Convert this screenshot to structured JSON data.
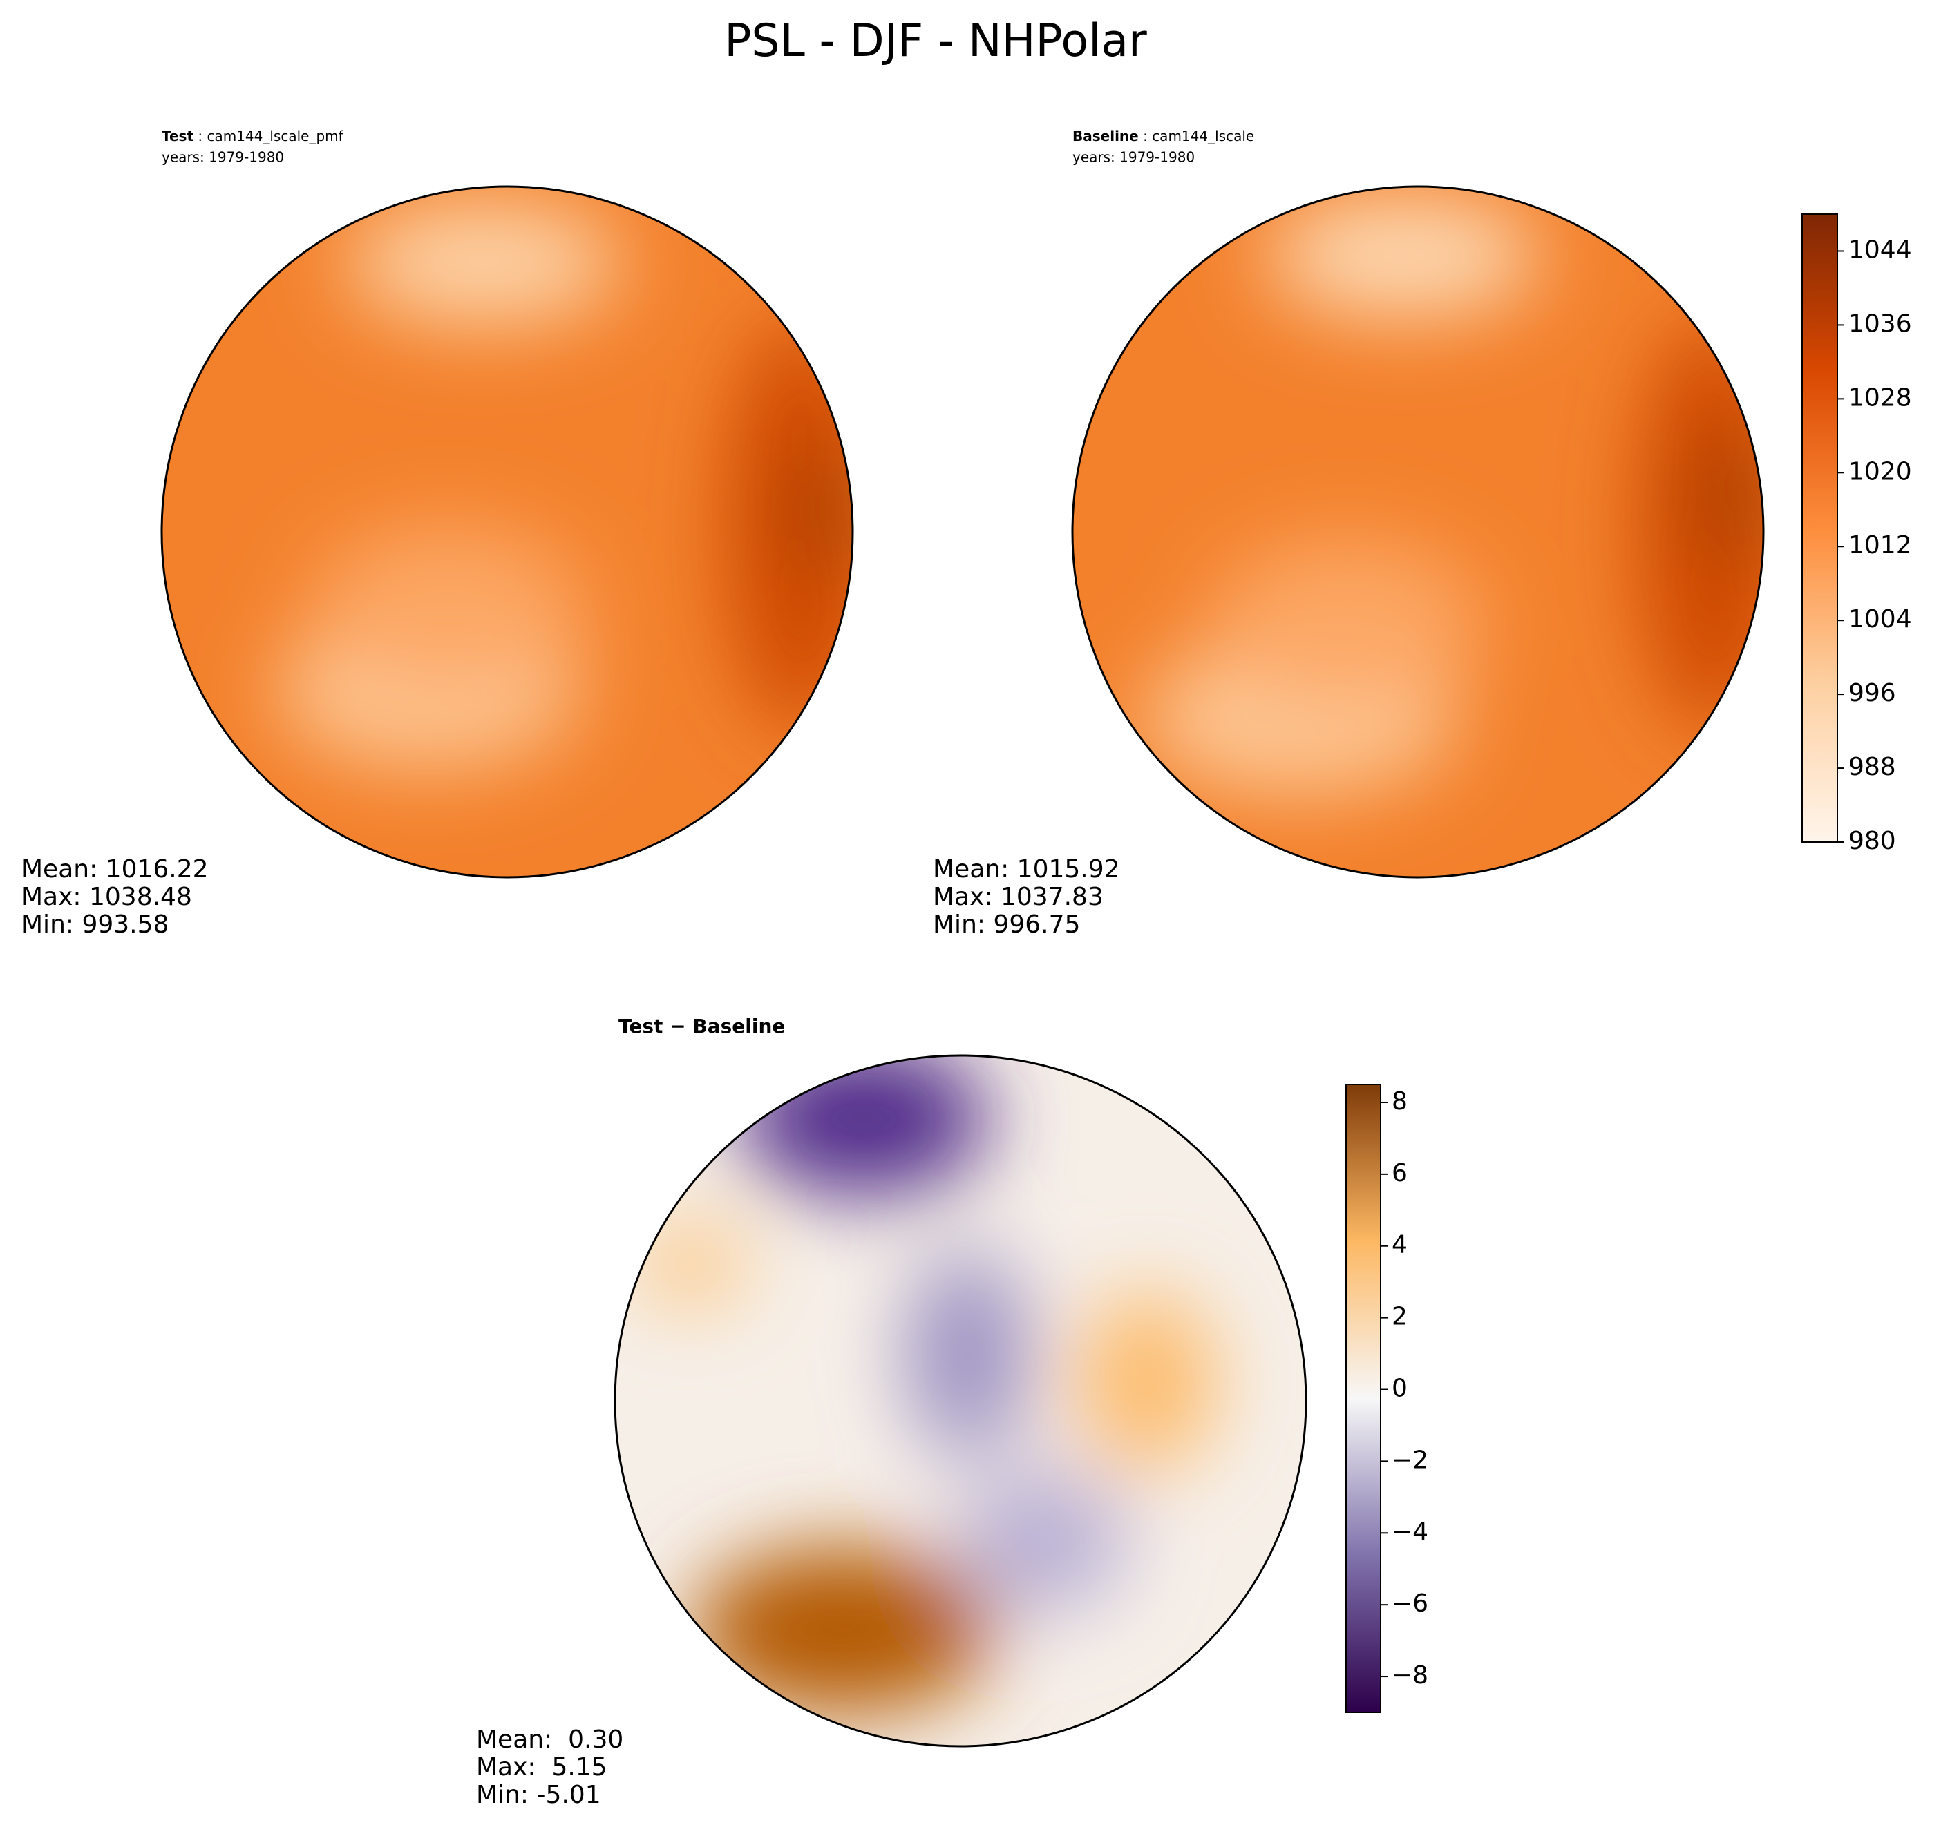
{
  "title": "PSL - DJF - NHPolar",
  "panels": [
    {
      "label_bold": "Test",
      "label_rest": " : cam144_lscale_pmf",
      "years": "years: 1979-1980",
      "stats": [
        "Mean: 1016.22",
        "Max: 1038.48",
        "Min: 993.58"
      ]
    },
    {
      "label_bold": "Baseline",
      "label_rest": " : cam144_lscale",
      "years": "years: 1979-1980",
      "stats": [
        "Mean: 1015.92",
        "Max: 1037.83",
        "Min: 996.75"
      ]
    },
    {
      "label_bold": "Test − Baseline",
      "stats": [
        "Mean:  0.30",
        "Max:  5.15",
        "Min: -5.01"
      ]
    }
  ],
  "colorbars": [
    {
      "lim": [
        980,
        1048
      ],
      "ticks": [
        980,
        988,
        996,
        1004,
        1012,
        1020,
        1028,
        1036,
        1044
      ],
      "colors": [
        "#fff5eb",
        "#fdd0a2",
        "#fd8d3c",
        "#d94801",
        "#7f2704"
      ]
    },
    {
      "lim": [
        -9,
        8.5
      ],
      "ticks": [
        {
          "value": -8,
          "label": "−8"
        },
        {
          "value": -6,
          "label": "−6"
        },
        {
          "value": -4,
          "label": "−4"
        },
        {
          "value": -2,
          "label": "−2"
        },
        0,
        2,
        4,
        6,
        8
      ],
      "colors": [
        "#2d004b",
        "#8073ac",
        "#f7f7f7",
        "#fdb863",
        "#7f3b08"
      ]
    }
  ]
}
